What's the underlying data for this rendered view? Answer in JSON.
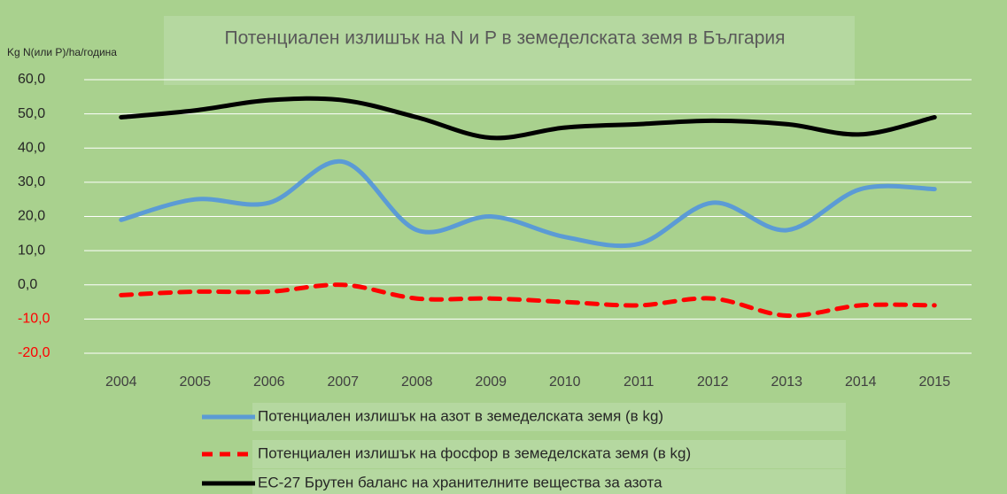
{
  "chart_data": {
    "type": "line",
    "title": "Потенциален излишък на N и P в земеделската земя в България",
    "y_axis_label": "Kg N(или P)/ha/година",
    "categories": [
      "2004",
      "2005",
      "2006",
      "2007",
      "2008",
      "2009",
      "2010",
      "2011",
      "2012",
      "2013",
      "2014",
      "2015"
    ],
    "series": [
      {
        "name": "Потенциален излишък на азот в земеделската земя (в kg)",
        "color": "#5b9bd5",
        "dash": false,
        "values": [
          19,
          25,
          24,
          36,
          16,
          20,
          14,
          12,
          24,
          16,
          28,
          28
        ]
      },
      {
        "name": "Потенциален излишък на фосфор в земеделската земя (в kg)",
        "color": "#ff0000",
        "dash": true,
        "values": [
          -3,
          -2,
          -2,
          0,
          -4,
          -4,
          -5,
          -6,
          -4,
          -9,
          -6,
          -6
        ]
      },
      {
        "name": "ЕС-27 Брутен баланс на хранителните вещества за азота",
        "color": "#000000",
        "dash": false,
        "values": [
          49,
          51,
          54,
          54,
          49,
          43,
          46,
          47,
          48,
          47,
          44,
          49
        ]
      }
    ],
    "ylim": [
      -20,
      60
    ],
    "yticks": [
      {
        "value": -20,
        "label": "-20,0"
      },
      {
        "value": -10,
        "label": "-10,0"
      },
      {
        "value": 0,
        "label": "0,0"
      },
      {
        "value": 10,
        "label": "10,0"
      },
      {
        "value": 20,
        "label": "20,0"
      },
      {
        "value": 30,
        "label": "30,0"
      },
      {
        "value": 40,
        "label": "40,0"
      },
      {
        "value": 50,
        "label": "50,0"
      },
      {
        "value": 60,
        "label": "60,0"
      }
    ],
    "grid": true,
    "smooth": true,
    "negative_tick_color": "#ff0000"
  }
}
